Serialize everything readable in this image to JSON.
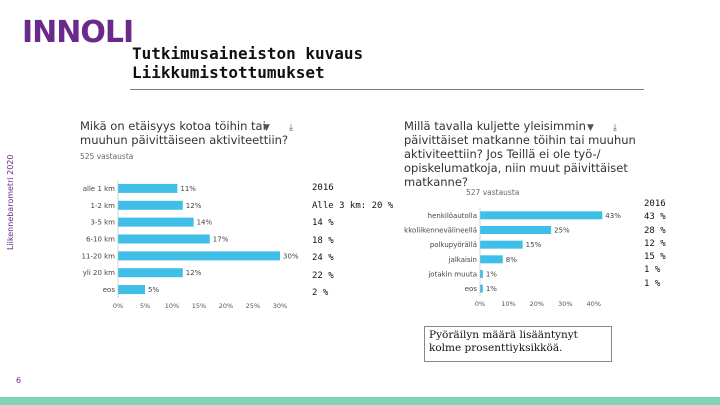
{
  "logo": {
    "text": "INNOLINK"
  },
  "header": {
    "title_line1": "Tutkimusaineiston kuvaus",
    "title_line2": "Liikkumistottumukset"
  },
  "side_label": "Liikennebarometri 2020",
  "page_number": "6",
  "colors": {
    "accent": "#6a2a8c",
    "bar": "#3fbfe8",
    "footer": "#7fd3b6"
  },
  "icons": [
    "filter-icon",
    "download-icon"
  ],
  "chart_data": [
    {
      "type": "bar",
      "orientation": "horizontal",
      "question_lines": [
        "Mikä on etäisyys kotoa töihin tai",
        "muuhun päivittäiseen aktiviteettiin?"
      ],
      "responses": "525",
      "responses_label": "vastausta",
      "categories": [
        "alle 1 km",
        "1-2 km",
        "3-5 km",
        "6-10 km",
        "11-20 km",
        "yli 20 km",
        "eos"
      ],
      "values": [
        11,
        12,
        14,
        17,
        30,
        12,
        5
      ],
      "value_labels": [
        "11%",
        "12%",
        "14%",
        "17%",
        "30%",
        "12%",
        "5%"
      ],
      "x_ticks": [
        "0%",
        "5%",
        "10%",
        "15%",
        "20%",
        "25%",
        "30%"
      ],
      "xlim": [
        0,
        30
      ]
    },
    {
      "type": "bar",
      "orientation": "horizontal",
      "question_lines": [
        "Millä tavalla kuljette yleisimmin",
        "päivittäiset matkanne töihin tai muuhun",
        "aktiviteettiin? Jos Teillä ei ole työ-/",
        "opiskelumatkoja, niin muut päivittäiset",
        "matkanne?"
      ],
      "responses": "527",
      "responses_label": "vastausta",
      "categories": [
        "henkilöautolla",
        "joukkoliikennevälineellä",
        "polkupyörällä",
        "jalkaisin",
        "jotakin muuta",
        "eos"
      ],
      "values": [
        43,
        25,
        15,
        8,
        1,
        1
      ],
      "value_labels": [
        "43%",
        "25%",
        "15%",
        "8%",
        "1%",
        "1%"
      ],
      "x_ticks": [
        "0%",
        "10%",
        "20%",
        "30%",
        "40%"
      ],
      "xlim": [
        0,
        45
      ]
    }
  ],
  "comparison_left": {
    "header": "2016",
    "rows": [
      "Alle 3 km: 20 %",
      "14 %",
      "18 %",
      "24 %",
      "22 %",
      "2 %"
    ]
  },
  "comparison_right": {
    "header": "2016",
    "rows": [
      "43 %",
      "28 %",
      "12 %",
      "15 %",
      "1 %",
      "1 %"
    ]
  },
  "note": "Pyöräilyn määrä lisääntynyt kolme prosenttiyksikköä."
}
